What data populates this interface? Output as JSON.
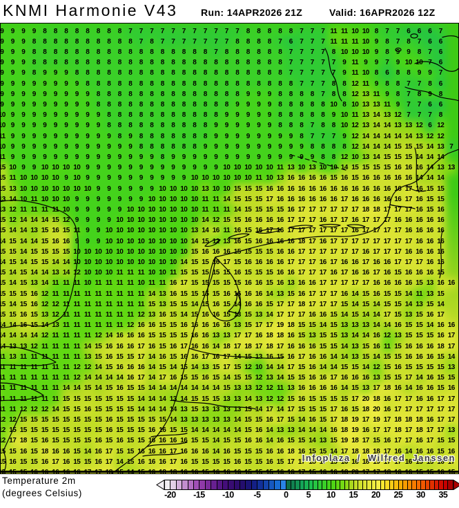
{
  "header": {
    "title": "KNMI Harmonie V43",
    "run_label": "Run: 14APR2026 21Z",
    "valid_label": "Valid: 16APR2026 12Z"
  },
  "map": {
    "watermark": "Infoplaza / Wilfred Janssen"
  },
  "legend": {
    "label_line1": "Temperature 2m",
    "label_line2": "(degrees Celsius)",
    "ticks": [
      -20,
      -15,
      -10,
      -5,
      0,
      5,
      10,
      15,
      20,
      25,
      30,
      35
    ],
    "palette_start": -21,
    "palette": [
      "#f2eef2",
      "#e2cfe6",
      "#d2aeda",
      "#c28ece",
      "#b26ec2",
      "#a150b6",
      "#8f3aa8",
      "#7b2c9c",
      "#672090",
      "#541684",
      "#440e7a",
      "#380c72",
      "#2e0c6e",
      "#240e6e",
      "#1a1476",
      "#142086",
      "#123098",
      "#1444ac",
      "#1658c0",
      "#186cd4",
      "#2a84e6",
      "#0e6e46",
      "#108050",
      "#129254",
      "#14a458",
      "#18b254",
      "#1cbe4e",
      "#26c542",
      "#30cb34",
      "#3ad028",
      "#44d31c",
      "#4ed514",
      "#60d812",
      "#74da14",
      "#8ed916",
      "#aad81e",
      "#c2dd26",
      "#d0e12e",
      "#dce434",
      "#e6e83a",
      "#eeec40",
      "#f4ee46",
      "#f8e832",
      "#f8dc24",
      "#f8cc18",
      "#f8bc0c",
      "#f8ac00",
      "#f89c00",
      "#f88c00",
      "#f87c00",
      "#f86c00",
      "#f25800",
      "#ea4400",
      "#e23000",
      "#da1c00",
      "#d20c00",
      "#c60000",
      "#aa0000"
    ]
  },
  "colors": {
    "coastline": "#000000",
    "sea_green": "#3ecb16",
    "warm_yellow": "#d6e434"
  },
  "chart_data": {
    "type": "heatmap",
    "title": "KNMI Harmonie V43",
    "subtitle": "Temperature 2m (degrees Celsius)",
    "run": "14APR2026 21Z",
    "valid": "16APR2026 12Z",
    "units": "degrees Celsius",
    "colorbar_range": [
      -20,
      35
    ],
    "legend_position": "bottom",
    "grid_rows": [
      "9 9 9 9 8 8 8 8 8 8 8 8 7 7 7 7 7 7 7 7 7 7 7 8 8 8 8 8 7 7 7 11 11 10 10 8 7 7 6 6 6 7",
      "9 9 9 8 8 8 8 8 8 8 8 8 8 7 8 7 7 7 7 7 7 7 8 8 8 8 7 6 7 7 7 11 11 11 10 9 8 7 8 7 6 6",
      "9 9 9 8 8 8 8 8 8 8 8 8 8 8 8 8 8 8 8 8 7 8 8 8 8 8 8 7 7 7 7 8 10 10 10 9 8 9 9 8 7 6",
      "9 9 9 8 8 8 8 8 8 8 8 8 8 8 8 8 8 8 8 8 8 8 8 8 8 8 8 7 7 7 7 7 9 11 9 9 7 9 10 10 7 6",
      "9 9 9 8 9 9 9 8 8 8 8 8 8 8 8 8 8 8 8 8 8 8 8 8 8 8 8 7 7 7 7 7 9 11 10 8 6 8 8 9 9 7",
      "9 9 9 9 9 9 9 9 8 8 8 8 8 8 8 8 8 8 8 8 8 8 8 8 8 8 8 8 7 7 7 8 8 12 11 9 8 8 7 7 8 6",
      "9 9 9 9 9 9 9 9 9 8 8 8 8 8 8 8 8 8 8 8 8 8 8 9 9 9 8 8 8 8 7 8 8 12 13 11 9 8 7 8 9 8",
      "9 9 9 9 9 9 9 9 9 8 8 8 8 8 8 8 8 8 8 8 8 8 9 9 9 9 8 8 8 8 8 10 8 10 13 13 11 9 7 7 6 6",
      "10 9 9 9 9 9 9 9 9 9 8 8 8 8 8 8 8 8 8 8 8 9 9 9 9 9 8 8 8 8 8 9 10 11 13 14 13 12 7 7 7 8",
      "10 9 9 9 9 9 9 9 9 9 8 8 8 8 8 8 8 8 8 8 9 9 9 9 9 9 8 8 8 7 8 8 10 12 13 14 14 13 13 12 6 12",
      "11 9 9 9 9 9 9 9 9 9 9 8 9 8 8 8 8 8 8 8 9 9 9 9 9 9 9 9 8 7 7 7 9 12 14 14 14 14 14 13 12 12",
      "10 9 9 9 9 9 9 9 9 9 9 9 9 8 8 8 8 8 8 9 9 9 9 9 9 9 9 9 9 8 8 8 8 12 14 14 14 15 15 15 14 13 7",
      "11 9 9 9 9 9 9 9 9 9 9 9 9 9 9 8 9 9 9 9 9 9 9 9 9 9 9 9 9 9 8 8 12 10 13 14 15 15 15 14 14 14",
      "15 10 9 9 10 10 10 10 9 9 9 9 9 9 9 9 9 9 9 9 9 10 10 10 10 10 11 13 10 13 10 10 14 15 15 15 15 16 16 16 14 13 13",
      "15 11 10 10 10 10 9 10 9 9 9 9 9 9 9 9 9 9 10 10 10 10 10 10 11 10 13 16 16 16 16 15 16 15 16 16 16 16 16 14 14 14",
      "15 13 10 10 10 10 10 10 10 9 9 9 9 9 9 10 10 10 10 13 10 10 15 15 15 16 16 16 16 16 16 16 16 16 16 16 16 16 17 16 15 15",
      "13 14 10 11 10 10 10 9 9 9 9 9 9 9 10 10 10 10 10 11 11 14 15 15 15 17 16 16 16 16 16 16 17 16 16 16 16 16 17 16 15 15",
      "13 12 11 11 11 11 10 9 9 9 9 9 10 10 10 10 10 10 10 11 11 11 14 15 15 15 15 16 17 17 17 17 17 17 18 18 17 17 17 16 15 16",
      "15 12 14 14 14 15 12 9 9 9 9 10 10 10 10 10 10 10 10 14 12 15 15 16 16 16 16 17 17 17 16 17 17 16 17 17 17 16 16 16 16 16",
      "15 14 14 13 15 16 15 11 9 9 10 10 10 10 10 10 10 10 13 14 16 11 16 15 16 17 16 17 17 17 17 17 17 16 17 17 17 17 16 16 16 16",
      "14 15 14 14 15 16 16 9 9 9 10 10 10 10 10 10 10 10 14 15 12 13 16 15 16 16 16 16 18 17 16 17 17 17 17 17 17 17 17 16 16 16",
      "15 15 14 15 15 15 15 10 10 10 10 10 10 10 10 10 10 10 15 16 16 16 15 15 15 15 16 16 17 17 17 17 17 17 16 17 17 17 16 16 16 16",
      "14 15 14 15 15 14 14 10 10 10 10 10 10 10 10 10 10 14 15 15 16 17 15 16 16 16 16 17 17 17 16 17 16 16 17 16 16 17 17 17 16 16",
      "15 14 15 14 14 13 14 12 10 10 10 11 11 11 10 10 11 15 15 15 15 15 16 15 15 15 16 16 17 17 17 16 17 16 16 17 16 15 16 16 16 15",
      "15 14 15 13 14 11 11 11 10 11 11 11 11 10 11 11 16 17 15 15 15 15 15 16 16 15 16 13 16 16 17 17 17 17 17 16 16 16 16 15 13 16 16",
      "15 15 15 16 12 11 11 11 11 11 11 11 11 11 14 13 16 15 15 15 15 16 16 16 16 14 13 15 16 17 17 17 16 14 15 16 15 15 14 11 13 15",
      "15 14 15 16 12 12 11 11 11 11 11 11 11 11 15 13 15 15 14 15 16 15 14 16 16 15 17 17 18 17 17 17 15 14 15 14 15 15 14 13 15 14",
      "15 15 16 15 13 12 11 11 11 11 11 11 11 12 13 16 15 14 15 16 16 15 13 15 13 14 17 17 17 16 16 15 14 15 14 14 17 15 13 15 16 17",
      "14 14 16 15 14 13 11 11 11 11 11 11 12 16 16 15 15 16 16 16 16 16 13 15 17 17 19 18 15 15 14 15 13 13 13 14 14 16 15 15 14 16 16",
      "14 14 14 14 12 11 11 11 11 12 14 16 16 16 15 15 15 15 16 16 13 13 17 17 16 18 18 16 15 13 15 15 13 14 14 16 12 13 15 15 15 16 17",
      "14 13 13 12 11 11 11 11 14 15 16 16 16 17 16 15 16 17 16 16 14 18 17 18 17 18 17 16 16 16 15 15 14 13 15 16 11 15 16 16 16 18 17",
      "11 13 11 11 11 11 11 11 13 15 16 15 15 17 14 16 15 16 16 17 16 17 14 15 13 16 15 16 17 16 16 14 14 13 15 14 15 15 16 16 16 15 14",
      "11 11 11 11 11 11 11 12 12 14 15 16 16 16 14 15 14 15 14 13 15 17 15 12 10 14 14 17 15 16 14 14 15 15 14 12 15 16 15 15 15 15 13",
      "11 11 11 11 11 11 11 12 14 14 14 14 16 17 14 17 16 15 15 16 15 14 15 15 12 13 14 15 15 16 16 17 16 16 16 13 15 15 17 14 16 15 15 14",
      "11 11 11 11 11 11 14 14 15 14 15 16 15 15 14 14 14 14 14 14 14 15 13 13 12 12 11 13 16 16 16 16 14 15 13 17 18 16 14 16 16 15 16",
      "11 11 11 11 11 11 15 15 15 15 15 15 15 14 14 14 13 14 15 15 15 13 13 14 13 12 12 15 16 15 15 15 15 17 20 18 16 17 17 16 16 17 17",
      "11 11 12 12 12 14 15 15 16 15 15 15 15 14 14 14 14 13 15 13 13 13 13 15 14 17 14 17 15 15 15 17 16 15 18 20 16 17 17 17 17 17 17",
      "12 12 15 15 15 15 15 15 15 15 16 15 15 15 15 15 14 13 13 13 13 13 14 15 15 16 17 15 14 16 15 17 18 19 17 19 17 18 18 18 16 17 17",
      "12 15 15 15 15 15 15 15 15 15 16 15 15 15 16 16 15 15 14 14 14 14 14 15 16 14 13 13 14 14 14 16 18 19 16 17 17 18 17 18 17 17 13",
      "12 17 18 15 16 15 15 15 15 16 15 16 15 15 16 16 16 16 15 15 14 15 15 16 16 14 16 15 15 14 13 15 19 18 17 15 16 17 17 16 17 15 15",
      "15 15 16 15 18 16 16 15 14 16 17 15 15 16 16 16 17 16 16 16 14 16 15 15 15 16 16 18 16 15 15 14 17 18 18 18 17 16 14 16 16 15 16",
      "15 16 15 15 16 17 16 15 15 16 17 14 15 16 16 16 17 16 15 15 15 15 16 15 15 16 15 17 17 18 17 15 16 16 18 19 17 17 16 15 15 16 17",
      "15 15 15 16 16 16 16 16 17 17 18 15 14 15 16 18 18 16 16 15 16 16 16 15 15 15 16 16 17 15 16 16 18 20 17 17 18 16 16 15 15 16 15"
    ]
  }
}
